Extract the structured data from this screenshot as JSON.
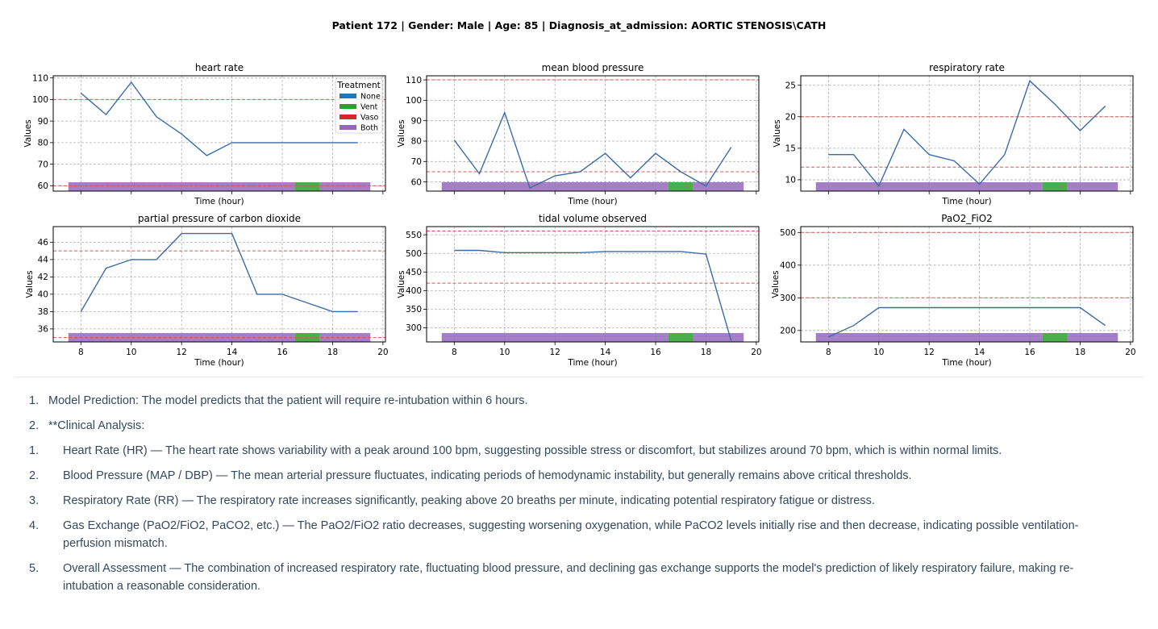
{
  "figure": {
    "suptitle": "Patient 172 | Gender: Male | Age: 85 | Diagnosis_at_admission: AORTIC STENOSIS\\CATH"
  },
  "colors": {
    "line": "#3b6ba5",
    "threshold": "#d05a5a",
    "grid": "#b0b0b0",
    "None": "#1f77b4",
    "Vent": "#2ca02c",
    "Vaso": "#d62728",
    "Both": "#9467bd"
  },
  "chart_data": [
    {
      "type": "line",
      "title": "heart rate",
      "xlabel": "Time (hour)",
      "ylabel": "Values",
      "x": [
        8,
        9,
        10,
        11,
        12,
        13,
        14,
        15,
        16,
        17,
        18,
        19
      ],
      "values": [
        103,
        93,
        108,
        92,
        84,
        74,
        80,
        80,
        80,
        80,
        80,
        80
      ],
      "thresholds": [
        60,
        100
      ],
      "ylim": [
        57.5,
        111
      ],
      "yticks": [
        60,
        70,
        80,
        90,
        100,
        110
      ],
      "xticks": [
        8,
        10,
        12,
        14,
        16,
        18,
        20
      ],
      "xlim": [
        6.9,
        20.1
      ],
      "show_xtick_labels": false,
      "grid": true,
      "treatment_bar": [
        {
          "start": 7.5,
          "end": 16.5,
          "treatment": "Both"
        },
        {
          "start": 16.5,
          "end": 17.5,
          "treatment": "Vent"
        },
        {
          "start": 17.5,
          "end": 19.5,
          "treatment": "Both"
        }
      ],
      "legend": {
        "title": "Treatment",
        "position": "top-right",
        "entries": [
          "None",
          "Vent",
          "Vaso",
          "Both"
        ]
      }
    },
    {
      "type": "line",
      "title": "mean blood pressure",
      "xlabel": "Time (hour)",
      "ylabel": "Values",
      "x": [
        8,
        9,
        10,
        11,
        12,
        13,
        14,
        15,
        16,
        17,
        18,
        19
      ],
      "values": [
        80.5,
        64,
        94,
        57,
        63,
        65,
        74,
        62,
        74,
        65,
        58,
        77
      ],
      "thresholds": [
        65,
        110
      ],
      "ylim": [
        55.5,
        112
      ],
      "yticks": [
        60,
        70,
        80,
        90,
        100,
        110
      ],
      "xticks": [
        8,
        10,
        12,
        14,
        16,
        18,
        20
      ],
      "xlim": [
        6.9,
        20.1
      ],
      "show_xtick_labels": false,
      "grid": true,
      "treatment_bar": [
        {
          "start": 7.5,
          "end": 16.5,
          "treatment": "Both"
        },
        {
          "start": 16.5,
          "end": 17.5,
          "treatment": "Vent"
        },
        {
          "start": 17.5,
          "end": 19.5,
          "treatment": "Both"
        }
      ]
    },
    {
      "type": "line",
      "title": "respiratory rate",
      "xlabel": "Time (hour)",
      "ylabel": "Values",
      "x": [
        8,
        9,
        10,
        11,
        12,
        13,
        14,
        15,
        16,
        17,
        18,
        19
      ],
      "values": [
        14,
        14,
        9,
        18,
        14,
        13,
        9.3,
        14,
        25.7,
        22,
        17.8,
        21.7
      ],
      "thresholds": [
        12,
        20
      ],
      "ylim": [
        8.2,
        26.5
      ],
      "yticks": [
        10,
        15,
        20,
        25
      ],
      "xticks": [
        8,
        10,
        12,
        14,
        16,
        18,
        20
      ],
      "xlim": [
        6.9,
        20.1
      ],
      "show_xtick_labels": false,
      "grid": true,
      "treatment_bar": [
        {
          "start": 7.5,
          "end": 16.5,
          "treatment": "Both"
        },
        {
          "start": 16.5,
          "end": 17.5,
          "treatment": "Vent"
        },
        {
          "start": 17.5,
          "end": 19.5,
          "treatment": "Both"
        }
      ]
    },
    {
      "type": "line",
      "title": "partial pressure of carbon dioxide",
      "xlabel": "Time (hour)",
      "ylabel": "Values",
      "x": [
        8,
        9,
        10,
        11,
        12,
        13,
        14,
        15,
        16,
        17,
        18,
        19
      ],
      "values": [
        38,
        43,
        44,
        44,
        47,
        47,
        47,
        40,
        40,
        39,
        38,
        38
      ],
      "thresholds": [
        35,
        45
      ],
      "ylim": [
        34.5,
        47.8
      ],
      "yticks": [
        36,
        38,
        40,
        42,
        44,
        46
      ],
      "xticks": [
        8,
        10,
        12,
        14,
        16,
        18,
        20
      ],
      "xlim": [
        6.9,
        20.1
      ],
      "show_xtick_labels": true,
      "grid": true,
      "treatment_bar": [
        {
          "start": 7.5,
          "end": 16.5,
          "treatment": "Both"
        },
        {
          "start": 16.5,
          "end": 17.5,
          "treatment": "Vent"
        },
        {
          "start": 17.5,
          "end": 19.5,
          "treatment": "Both"
        }
      ]
    },
    {
      "type": "line",
      "title": "tidal volume observed",
      "xlabel": "Time (hour)",
      "ylabel": "Values",
      "x": [
        8,
        9,
        10,
        11,
        12,
        13,
        14,
        15,
        16,
        17,
        18,
        19
      ],
      "values": [
        508,
        508,
        502,
        502,
        502,
        502,
        505,
        505,
        505,
        505,
        498,
        265
      ],
      "thresholds": [
        420,
        560
      ],
      "ylim": [
        262,
        572
      ],
      "yticks": [
        300,
        350,
        400,
        450,
        500,
        550
      ],
      "xticks": [
        8,
        10,
        12,
        14,
        16,
        18,
        20
      ],
      "xlim": [
        6.9,
        20.1
      ],
      "show_xtick_labels": true,
      "grid": true,
      "treatment_bar": [
        {
          "start": 7.5,
          "end": 16.5,
          "treatment": "Both"
        },
        {
          "start": 16.5,
          "end": 17.5,
          "treatment": "Vent"
        },
        {
          "start": 17.5,
          "end": 19.5,
          "treatment": "Both"
        }
      ]
    },
    {
      "type": "line",
      "title": "PaO2_FiO2",
      "xlabel": "Time (hour)",
      "ylabel": "Values",
      "x": [
        8,
        9,
        10,
        11,
        12,
        13,
        14,
        15,
        16,
        17,
        18,
        19
      ],
      "values": [
        180,
        215,
        270,
        270,
        270,
        270,
        270,
        270,
        270,
        270,
        270,
        215
      ],
      "thresholds": [
        300,
        500
      ],
      "ylim": [
        165,
        518
      ],
      "yticks": [
        200,
        300,
        400,
        500
      ],
      "xticks": [
        8,
        10,
        12,
        14,
        16,
        18,
        20
      ],
      "xlim": [
        6.9,
        20.1
      ],
      "show_xtick_labels": true,
      "grid": true,
      "treatment_bar": [
        {
          "start": 7.5,
          "end": 16.5,
          "treatment": "Both"
        },
        {
          "start": 16.5,
          "end": 17.5,
          "treatment": "Vent"
        },
        {
          "start": 17.5,
          "end": 19.5,
          "treatment": "Both"
        }
      ]
    }
  ],
  "analysis": {
    "item1_num": "1.",
    "item1_text": "Model Prediction: The model predicts that the patient will require re-intubation within 6 hours.",
    "item2_num": "2.",
    "item2_text": "**Clinical Analysis:",
    "sub1_num": "1.",
    "sub1_text": "Heart Rate (HR) — The heart rate shows variability with a peak around 100 bpm, suggesting possible stress or discomfort, but stabilizes around 70 bpm, which is within normal limits.",
    "sub2_num": "2.",
    "sub2_text": "Blood Pressure (MAP / DBP) — The mean arterial pressure fluctuates, indicating periods of hemodynamic instability, but generally remains above critical thresholds.",
    "sub3_num": "3.",
    "sub3_text": "Respiratory Rate (RR) — The respiratory rate increases significantly, peaking above 20 breaths per minute, indicating potential respiratory fatigue or distress.",
    "sub4_num": "4.",
    "sub4_text": "Gas Exchange (PaO2/FiO2, PaCO2, etc.) — The PaO2/FiO2 ratio decreases, suggesting worsening oxygenation, while PaCO2 levels initially rise and then decrease, indicating possible ventilation-perfusion mismatch.",
    "sub5_num": "5.",
    "sub5_text": "Overall Assessment — The combination of increased respiratory rate, fluctuating blood pressure, and declining gas exchange supports the model's prediction of likely respiratory failure, making re-intubation a reasonable consideration."
  }
}
